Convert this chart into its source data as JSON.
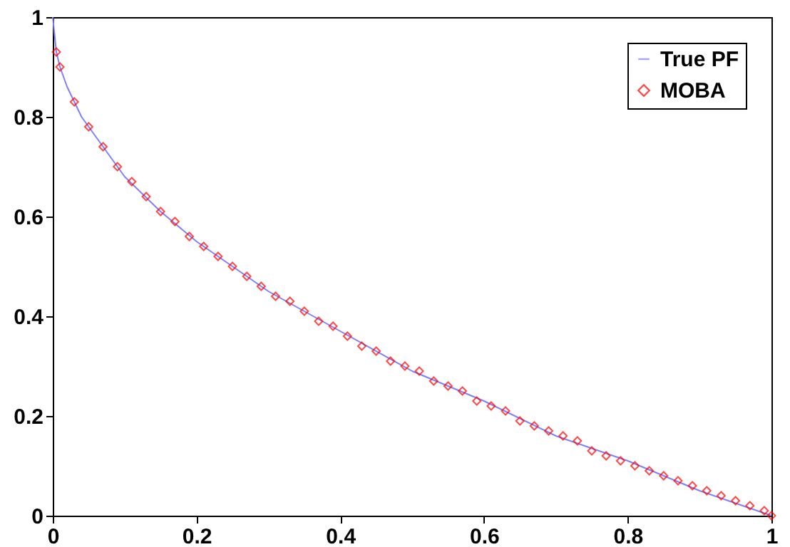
{
  "chart_data": {
    "type": "line",
    "xlim": [
      0,
      1
    ],
    "ylim": [
      0,
      1
    ],
    "xticks": [
      0,
      0.2,
      0.4,
      0.6,
      0.8,
      1
    ],
    "yticks": [
      0,
      0.2,
      0.4,
      0.6,
      0.8,
      1
    ],
    "grid": false,
    "legend": "top right",
    "series": [
      {
        "name": "True PF",
        "type": "line",
        "color": "#8080ff",
        "line_style": "solid",
        "marker": "none",
        "x": [
          0,
          0.005,
          0.01,
          0.02,
          0.04,
          0.06,
          0.1,
          0.15,
          0.2,
          0.25,
          0.3,
          0.4,
          0.5,
          0.6,
          0.7,
          0.8,
          0.9,
          1
        ],
        "values": [
          1,
          0.93,
          0.9,
          0.86,
          0.8,
          0.76,
          0.68,
          0.61,
          0.55,
          0.5,
          0.45,
          0.37,
          0.29,
          0.23,
          0.16,
          0.11,
          0.05,
          0
        ]
      },
      {
        "name": "MOBA",
        "type": "scatter",
        "color": "#ff0000",
        "marker": "diamond",
        "x": [
          0.005,
          0.01,
          0.03,
          0.05,
          0.07,
          0.09,
          0.11,
          0.13,
          0.15,
          0.17,
          0.19,
          0.21,
          0.23,
          0.25,
          0.27,
          0.29,
          0.31,
          0.33,
          0.35,
          0.37,
          0.39,
          0.41,
          0.43,
          0.45,
          0.47,
          0.49,
          0.51,
          0.53,
          0.55,
          0.57,
          0.59,
          0.61,
          0.63,
          0.65,
          0.67,
          0.69,
          0.71,
          0.73,
          0.75,
          0.77,
          0.79,
          0.81,
          0.83,
          0.85,
          0.87,
          0.89,
          0.91,
          0.93,
          0.95,
          0.97,
          0.99,
          1
        ],
        "values": [
          0.93,
          0.9,
          0.83,
          0.78,
          0.74,
          0.7,
          0.67,
          0.64,
          0.61,
          0.59,
          0.56,
          0.54,
          0.52,
          0.5,
          0.48,
          0.46,
          0.44,
          0.43,
          0.41,
          0.39,
          0.38,
          0.36,
          0.34,
          0.33,
          0.31,
          0.3,
          0.29,
          0.27,
          0.26,
          0.25,
          0.23,
          0.22,
          0.21,
          0.19,
          0.18,
          0.17,
          0.16,
          0.15,
          0.13,
          0.12,
          0.11,
          0.1,
          0.09,
          0.08,
          0.07,
          0.06,
          0.05,
          0.04,
          0.03,
          0.02,
          0.01,
          0
        ]
      }
    ]
  }
}
